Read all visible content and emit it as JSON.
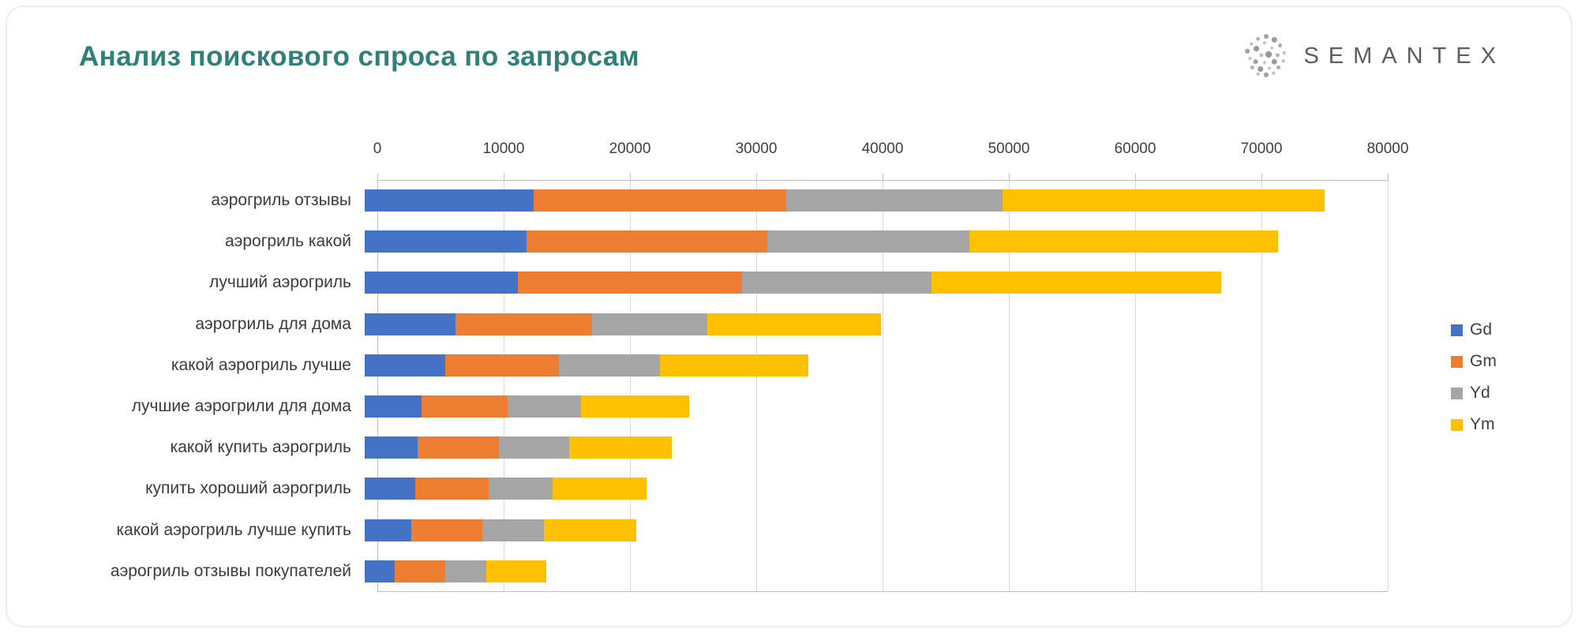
{
  "header": {
    "title": "Анализ поискового спроса по запросам",
    "logo_text": "SEMANTEX"
  },
  "chart_data": {
    "type": "bar",
    "orientation": "horizontal",
    "stacked": true,
    "title": "Анализ поискового спроса по запросам",
    "categories": [
      "аэрогриль отзывы",
      "аэрогриль какой",
      "лучший аэрогриль",
      "аэрогриль для дома",
      "какой аэрогриль лучше",
      "лучшие аэрогрили для дома",
      "какой купить аэрогриль",
      "купить хороший аэрогриль",
      "какой аэрогриль лучше купить",
      "аэрогриль отзывы покупателей"
    ],
    "series": [
      {
        "name": "Gd",
        "color": "#4472C4",
        "values": [
          13400,
          12800,
          12100,
          7200,
          6400,
          4500,
          4200,
          4000,
          3700,
          2400
        ]
      },
      {
        "name": "Gm",
        "color": "#ED7D31",
        "values": [
          20000,
          19100,
          17800,
          10800,
          9000,
          6800,
          6400,
          5800,
          5600,
          4000
        ]
      },
      {
        "name": "Yd",
        "color": "#A5A5A5",
        "values": [
          17100,
          16000,
          15000,
          9100,
          8000,
          5800,
          5600,
          5100,
          4900,
          3200
        ]
      },
      {
        "name": "Ym",
        "color": "#FFC000",
        "values": [
          25500,
          24400,
          22900,
          13800,
          11700,
          8600,
          8100,
          7400,
          7300,
          4800
        ]
      }
    ],
    "x_axis": {
      "min": 0,
      "max": 80000,
      "step": 10000
    },
    "legend_position": "right",
    "grid": true,
    "colors": {
      "title_accent": "#2e8078",
      "gridline": "#d9d9d9",
      "axis_line": "#bfbfbf"
    }
  }
}
